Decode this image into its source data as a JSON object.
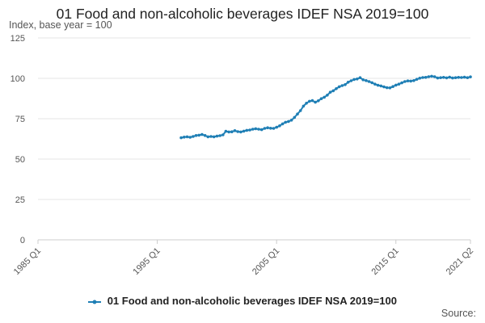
{
  "chart": {
    "title": "01 Food and non-alcoholic beverages IDEF NSA 2019=100",
    "subtitle": "Index, base year = 100",
    "source_label": "Source:"
  },
  "colors": {
    "series": "#1f7fb5",
    "grid": "#e6e6e6",
    "axis": "#cccccc",
    "tick_text": "#555555"
  },
  "chart_data": {
    "type": "line",
    "title": "01 Food and non-alcoholic beverages IDEF NSA 2019=100",
    "ylabel": "Index, base year = 100",
    "xlabel": "",
    "x_range": [
      "1985 Q1",
      "2021 Q2"
    ],
    "xticks": [
      "1985 Q1",
      "1995 Q1",
      "2005 Q1",
      "2015 Q1",
      "2021 Q2"
    ],
    "ylim": [
      0,
      125
    ],
    "yticks": [
      0,
      25,
      50,
      75,
      100,
      125
    ],
    "grid": true,
    "legend_position": "bottom",
    "series": [
      {
        "name": "01 Food and non-alcoholic beverages IDEF NSA 2019=100",
        "x": [
          "1997 Q1",
          "1997 Q2",
          "1997 Q3",
          "1997 Q4",
          "1998 Q1",
          "1998 Q2",
          "1998 Q3",
          "1998 Q4",
          "1999 Q1",
          "1999 Q2",
          "1999 Q3",
          "1999 Q4",
          "2000 Q1",
          "2000 Q2",
          "2000 Q3",
          "2000 Q4",
          "2001 Q1",
          "2001 Q2",
          "2001 Q3",
          "2001 Q4",
          "2002 Q1",
          "2002 Q2",
          "2002 Q3",
          "2002 Q4",
          "2003 Q1",
          "2003 Q2",
          "2003 Q3",
          "2003 Q4",
          "2004 Q1",
          "2004 Q2",
          "2004 Q3",
          "2004 Q4",
          "2005 Q1",
          "2005 Q2",
          "2005 Q3",
          "2005 Q4",
          "2006 Q1",
          "2006 Q2",
          "2006 Q3",
          "2006 Q4",
          "2007 Q1",
          "2007 Q2",
          "2007 Q3",
          "2007 Q4",
          "2008 Q1",
          "2008 Q2",
          "2008 Q3",
          "2008 Q4",
          "2009 Q1",
          "2009 Q2",
          "2009 Q3",
          "2009 Q4",
          "2010 Q1",
          "2010 Q2",
          "2010 Q3",
          "2010 Q4",
          "2011 Q1",
          "2011 Q2",
          "2011 Q3",
          "2011 Q4",
          "2012 Q1",
          "2012 Q2",
          "2012 Q3",
          "2012 Q4",
          "2013 Q1",
          "2013 Q2",
          "2013 Q3",
          "2013 Q4",
          "2014 Q1",
          "2014 Q2",
          "2014 Q3",
          "2014 Q4",
          "2015 Q1",
          "2015 Q2",
          "2015 Q3",
          "2015 Q4",
          "2016 Q1",
          "2016 Q2",
          "2016 Q3",
          "2016 Q4",
          "2017 Q1",
          "2017 Q2",
          "2017 Q3",
          "2017 Q4",
          "2018 Q1",
          "2018 Q2",
          "2018 Q3",
          "2018 Q4",
          "2019 Q1",
          "2019 Q2",
          "2019 Q3",
          "2019 Q4",
          "2020 Q1",
          "2020 Q2",
          "2020 Q3",
          "2020 Q4",
          "2021 Q1",
          "2021 Q2"
        ],
        "values": [
          63.2,
          63.6,
          63.8,
          63.5,
          64.0,
          64.6,
          64.8,
          65.2,
          64.6,
          63.8,
          64.0,
          63.8,
          64.2,
          64.5,
          65.0,
          67.2,
          66.8,
          66.9,
          67.6,
          67.0,
          66.8,
          67.3,
          67.8,
          68.0,
          68.5,
          68.8,
          68.5,
          68.2,
          69.0,
          69.4,
          69.1,
          69.0,
          69.7,
          70.6,
          71.8,
          72.8,
          73.3,
          74.1,
          75.8,
          77.9,
          80.0,
          82.8,
          84.6,
          85.8,
          86.2,
          85.2,
          86.1,
          87.4,
          88.3,
          89.6,
          91.4,
          92.3,
          93.6,
          94.8,
          95.5,
          96.1,
          97.6,
          98.5,
          99.3,
          99.6,
          100.4,
          99.1,
          98.6,
          98.0,
          97.3,
          96.4,
          95.7,
          95.3,
          94.7,
          94.2,
          94.1,
          94.9,
          95.8,
          96.4,
          97.2,
          98.0,
          98.4,
          98.3,
          98.6,
          99.4,
          100.1,
          100.5,
          100.6,
          101.0,
          101.3,
          101.0,
          100.2,
          100.4,
          100.6,
          100.3,
          100.7,
          100.2,
          100.4,
          100.6,
          100.5,
          100.7,
          100.4,
          100.9
        ]
      }
    ]
  }
}
